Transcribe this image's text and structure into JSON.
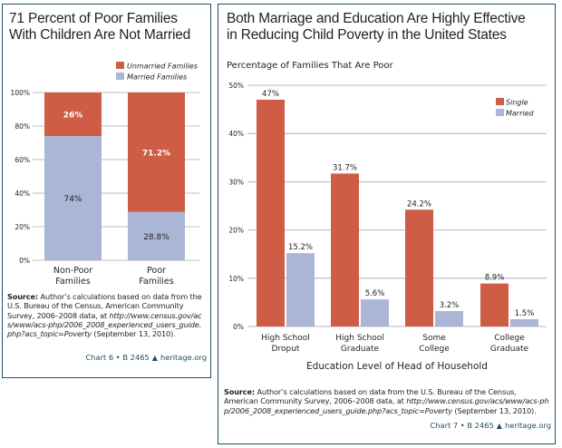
{
  "colors": {
    "single": "#cf5c44",
    "married": "#aab6d6",
    "border": "#1f4e63",
    "grid": "#a6a6a6",
    "credit": "#1f4e63"
  },
  "left": {
    "title_line1": "71 Percent of Poor Families",
    "title_line2": "With Children Are Not Married",
    "source_label": "Source:",
    "source_text": " Author’s calculations based on data from the U.S. Bureau of the Census, American Community Survey, 2006–2008 data, at ",
    "source_url": "http://www.census.gov/acs/www/acs-php/2006_2008_experienced_users_guide.php?acs_topic=Poverty",
    "source_date": " (September 13, 2010).",
    "credit_chart": "Chart 6 • B 2465",
    "credit_site": "heritage.org",
    "credit_icon": "liberty-bell-icon"
  },
  "right": {
    "title_line1": "Both Marriage and Education Are Highly Effective",
    "title_line2": "in Reducing Child Poverty in the United States",
    "subtitle": "Percentage of Families That Are Poor",
    "source_label": "Source:",
    "source_text": " Author’s calculations based on data from the U.S. Bureau of the Census, American Community Survey, 2006–2008 data, at ",
    "source_url": "http://www.census.gov/acs/www/acs-php/2006_2008_experienced_users_guide.php?acs_topic=Poverty",
    "source_date": " (September 13, 2010).",
    "credit_chart": "Chart 7 • B 2465",
    "credit_site": "heritage.org",
    "credit_icon": "liberty-bell-icon"
  },
  "chart_data": [
    {
      "type": "bar",
      "stacked": true,
      "title": "71 Percent of Poor Families With Children Are Not Married",
      "categories": [
        [
          "Non-Poor",
          "Families"
        ],
        [
          "Poor",
          "Families"
        ]
      ],
      "series": [
        {
          "name": "Married Families",
          "values": [
            74,
            28.8
          ],
          "labels": [
            "74%",
            "28.8%"
          ],
          "color_key": "married"
        },
        {
          "name": "Unmarried Families",
          "values": [
            26,
            71.2
          ],
          "labels": [
            "26%",
            "71.2%"
          ],
          "color_key": "single"
        }
      ],
      "legend": [
        "Unmarried Families",
        "Married Families"
      ],
      "legend_position": "top-right",
      "ylim": [
        0,
        100
      ],
      "yticks": [
        0,
        20,
        40,
        60,
        80,
        100
      ],
      "ytick_labels": [
        "0%",
        "20%",
        "40%",
        "60%",
        "80%",
        "100%"
      ],
      "grid": true,
      "xlabel": "",
      "ylabel": ""
    },
    {
      "type": "bar",
      "stacked": false,
      "title": "Both Marriage and Education Are Highly Effective in Reducing Child Poverty in the United States",
      "subtitle": "Percentage of Families That Are Poor",
      "categories": [
        [
          "High School",
          "Droput"
        ],
        [
          "High School",
          "Graduate"
        ],
        [
          "Some",
          "College"
        ],
        [
          "College",
          "Graduate"
        ]
      ],
      "series": [
        {
          "name": "Single",
          "values": [
            47,
            31.7,
            24.2,
            8.9
          ],
          "labels": [
            "47%",
            "31.7%",
            "24.2%",
            "8.9%"
          ],
          "color_key": "single"
        },
        {
          "name": "Married",
          "values": [
            15.2,
            5.6,
            3.2,
            1.5
          ],
          "labels": [
            "15.2%",
            "5.6%",
            "3.2%",
            "1.5%"
          ],
          "color_key": "married"
        }
      ],
      "legend": [
        "Single",
        "Married"
      ],
      "legend_position": "top-right",
      "ylim": [
        0,
        50
      ],
      "yticks": [
        0,
        10,
        20,
        30,
        40,
        50
      ],
      "ytick_labels": [
        "0%",
        "10%",
        "20%",
        "30%",
        "40%",
        "50%"
      ],
      "grid": true,
      "xlabel": "Education Level of Head of Household",
      "ylabel": ""
    }
  ]
}
